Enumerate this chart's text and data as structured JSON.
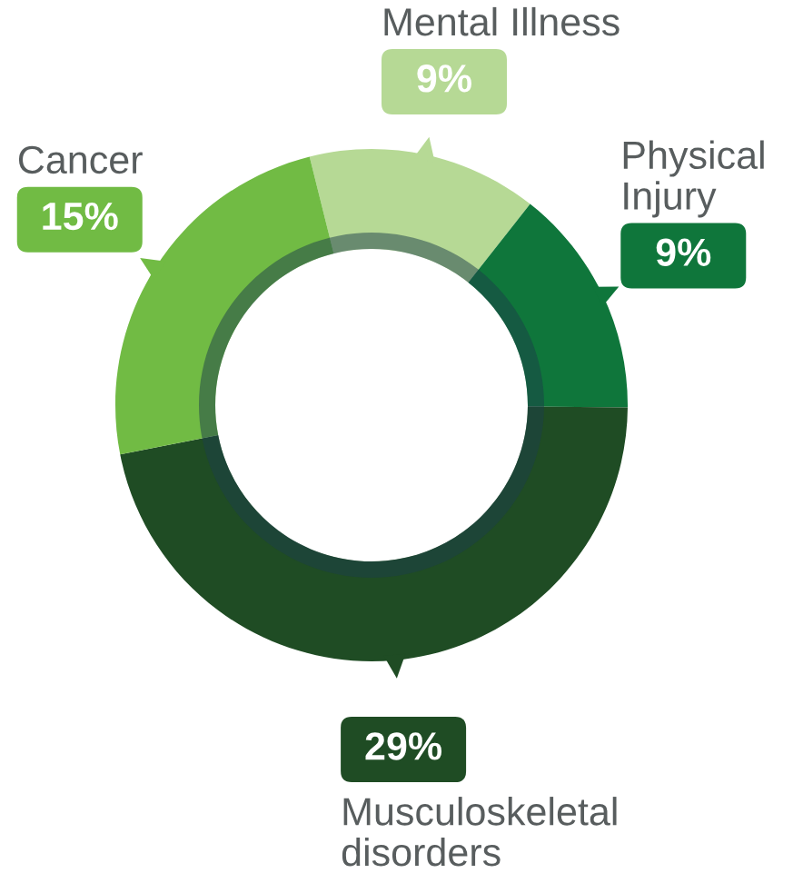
{
  "chart_data": {
    "type": "donut",
    "categories": [
      "Mental Illness",
      "Physical Injury",
      "Musculoskeletal disorders",
      "Cancer"
    ],
    "values": [
      9,
      9,
      29,
      15
    ],
    "colors": [
      "#b6d995",
      "#0f763b",
      "#1f4c24",
      "#71bb44"
    ],
    "value_labels": [
      "9%",
      "9%",
      "29%",
      "15%"
    ]
  }
}
